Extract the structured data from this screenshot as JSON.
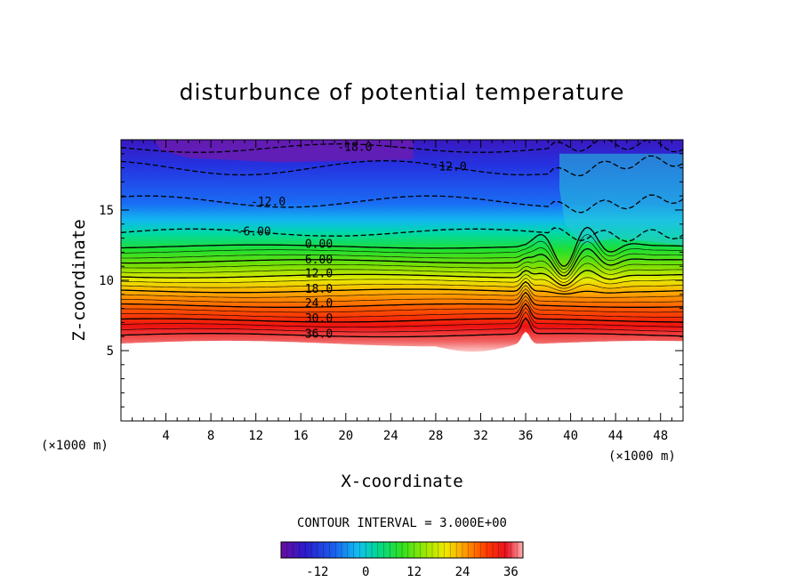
{
  "chart_data": {
    "type": "heatmap",
    "title": "disturbunce of potential temperature",
    "xlabel": "X-coordinate",
    "ylabel": "Z-coordinate",
    "x_unit": "(×1000 m)",
    "z_unit": "(×1000 m)",
    "xlim": [
      0,
      50
    ],
    "ylim": [
      0,
      20
    ],
    "x_ticks": [
      4,
      8,
      12,
      16,
      20,
      24,
      28,
      32,
      36,
      40,
      44,
      48
    ],
    "y_ticks": [
      5,
      10,
      15
    ],
    "contour_interval_text": "CONTOUR INTERVAL = 3.000E+00",
    "colorbar": {
      "min": -21,
      "max": 39,
      "ticks": [
        -12,
        0,
        12,
        24,
        36
      ]
    },
    "contour_labels": [
      {
        "text": "-18.0",
        "x": 20.8,
        "z": 19.4
      },
      {
        "text": "-12.0",
        "x": 29.2,
        "z": 18.0
      },
      {
        "text": "-12.0",
        "x": 13.1,
        "z": 15.5
      },
      {
        "text": "-6.00",
        "x": 11.8,
        "z": 13.4
      },
      {
        "text": "0.00",
        "x": 17.6,
        "z": 12.5
      },
      {
        "text": "6.00",
        "x": 17.6,
        "z": 11.4
      },
      {
        "text": "12.0",
        "x": 17.6,
        "z": 10.4
      },
      {
        "text": "18.0",
        "x": 17.6,
        "z": 9.3
      },
      {
        "text": "24.0",
        "x": 17.6,
        "z": 8.3
      },
      {
        "text": "30.0",
        "x": 17.6,
        "z": 7.2
      },
      {
        "text": "36.0",
        "x": 17.6,
        "z": 6.1
      }
    ]
  }
}
